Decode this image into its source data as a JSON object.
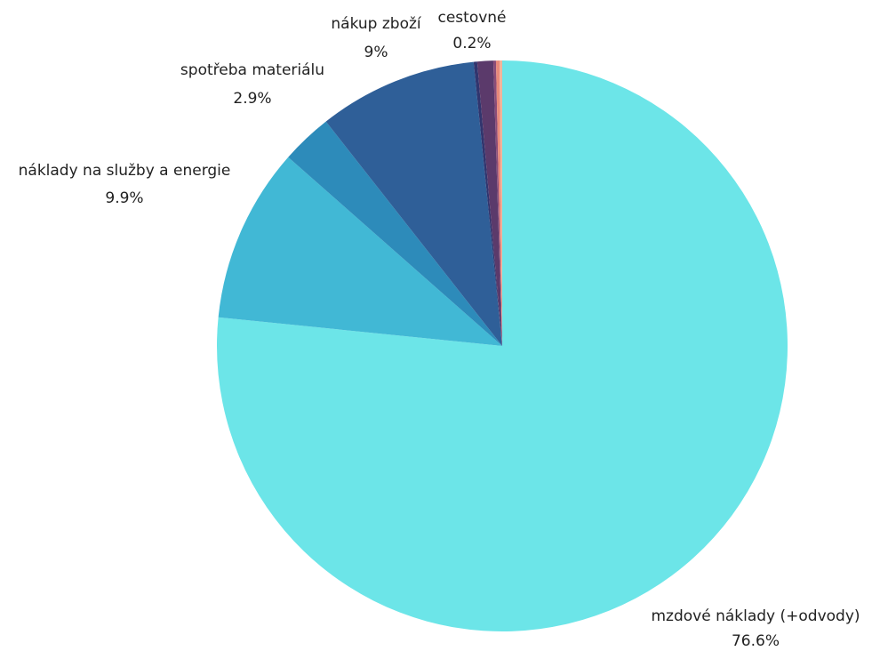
{
  "chart_data": {
    "type": "pie",
    "title": "",
    "start": "top",
    "direction": "clockwise",
    "slices": [
      {
        "label": "mzdové náklady (+odvody)",
        "pct_label": "76.6%",
        "value": 76.6,
        "color": "#6CE5E8",
        "labeled": true
      },
      {
        "label": "náklady na služby a energie",
        "pct_label": "9.9%",
        "value": 9.9,
        "color": "#41B8D5",
        "labeled": true
      },
      {
        "label": "spotřeba materiálu",
        "pct_label": "2.9%",
        "value": 2.9,
        "color": "#2D8BBA",
        "labeled": true
      },
      {
        "label": "nákup zboží",
        "pct_label": "9%",
        "value": 9.0,
        "color": "#2F5F98",
        "labeled": true
      },
      {
        "label": "",
        "pct_label": "",
        "value": 0.2,
        "color": "#31356E",
        "labeled": false
      },
      {
        "label": "",
        "pct_label": "",
        "value": 0.9,
        "color": "#5B3A6B",
        "labeled": false
      },
      {
        "label": "",
        "pct_label": "",
        "value": 0.15,
        "color": "#8A4C78",
        "labeled": false
      },
      {
        "label": "cestovné",
        "pct_label": "0.2%",
        "value": 0.2,
        "color": "#E8897B",
        "labeled": true
      },
      {
        "label": "",
        "pct_label": "",
        "value": 0.15,
        "color": "#F2B49A",
        "labeled": false
      }
    ]
  }
}
